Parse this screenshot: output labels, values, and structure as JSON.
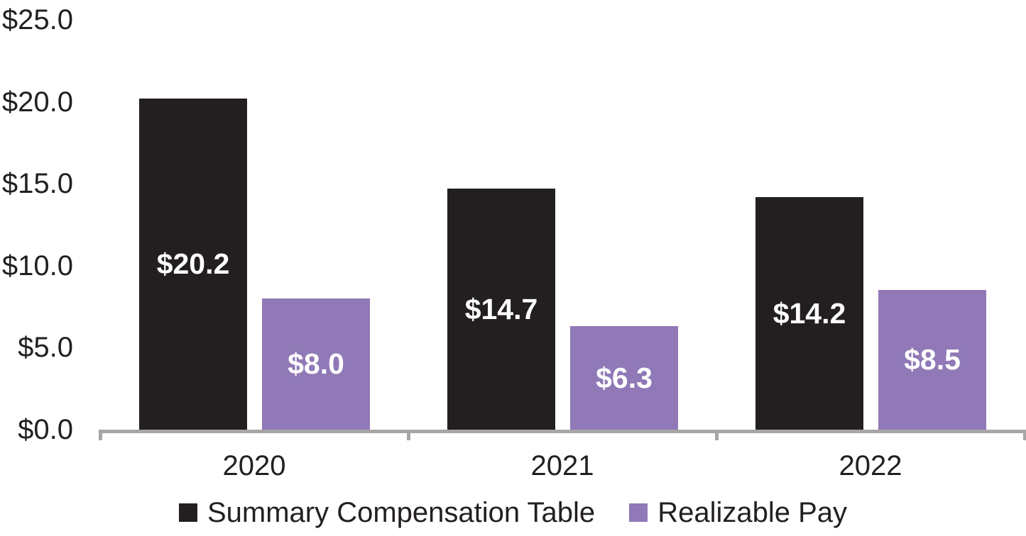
{
  "chart_data": {
    "type": "bar",
    "title": "",
    "categories": [
      "2020",
      "2021",
      "2022"
    ],
    "series": [
      {
        "name": "Summary Compensation Table",
        "color": "#231F20",
        "values": [
          20.2,
          14.7,
          14.2
        ],
        "labels": [
          "$20.2",
          "$14.7",
          "$14.2"
        ]
      },
      {
        "name": "Realizable Pay",
        "color": "#9079B6",
        "values": [
          8.0,
          6.3,
          8.5
        ],
        "labels": [
          "$8.0",
          "$6.3",
          "$8.5"
        ]
      }
    ],
    "y_axis": {
      "tick_labels": [
        "$0.0",
        "$5.0",
        "$10.0",
        "$15.0",
        "$20.0",
        "$25.0"
      ],
      "tick_values": [
        0,
        5,
        10,
        15,
        20,
        25
      ],
      "min": 0,
      "max": 25
    },
    "x_axis": {
      "label": ""
    },
    "grid": false,
    "legend_position": "bottom",
    "value_label_color": "#FFFFFF",
    "axis_color": "#A6A6A6",
    "text_color": "#231F20",
    "background_color": "#FFFFFF"
  }
}
